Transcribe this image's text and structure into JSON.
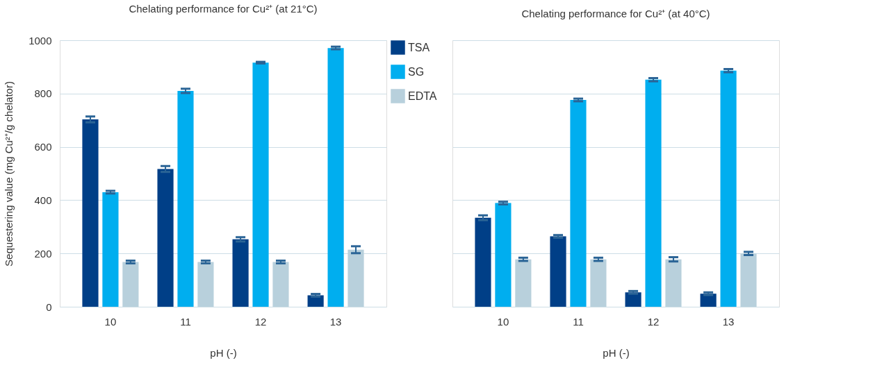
{
  "chart_data": [
    {
      "type": "bar",
      "title": "Chelating performance for Cu²⁺ (at 21°C)",
      "xlabel": "pH (-)",
      "ylabel": "Sequestering value (mg Cu²⁺/g chelator)",
      "categories": [
        "10",
        "11",
        "12",
        "13"
      ],
      "ylim": [
        0,
        1000
      ],
      "yticks": [
        0,
        200,
        400,
        600,
        800,
        {
          "value": 1000,
          "label": "1000"
        }
      ],
      "grid": "y",
      "legend": "right",
      "series": [
        {
          "name": "TSA",
          "color": "#003f87",
          "values": [
            703,
            517,
            253,
            43
          ],
          "errors": [
            11,
            11,
            8,
            5
          ]
        },
        {
          "name": "SG",
          "color": "#00aeef",
          "values": [
            430,
            810,
            916,
            971
          ],
          "errors": [
            5,
            8,
            3,
            5
          ]
        },
        {
          "name": "EDTA",
          "color": "#b8d0dc",
          "values": [
            168,
            168,
            168,
            214
          ],
          "errors": [
            5,
            5,
            5,
            13
          ]
        }
      ]
    },
    {
      "type": "bar",
      "title": "Chelating performance for Cu²⁺ (at 40°C)",
      "xlabel": "pH (-)",
      "categories": [
        "10",
        "11",
        "12",
        "13"
      ],
      "ylim": [
        0,
        1000
      ],
      "yticks": [
        0,
        200,
        400,
        600,
        800,
        1000
      ],
      "grid": "y",
      "tick_labels": "x",
      "series": [
        {
          "name": "TSA",
          "color": "#003f87",
          "values": [
            334,
            264,
            54,
            49
          ],
          "errors": [
            9,
            5,
            5,
            5
          ]
        },
        {
          "name": "SG",
          "color": "#00aeef",
          "values": [
            389,
            776,
            852,
            886
          ],
          "errors": [
            5,
            5,
            6,
            6
          ]
        },
        {
          "name": "EDTA",
          "color": "#b8d0dc",
          "values": [
            178,
            178,
            178,
            200
          ],
          "errors": [
            6,
            6,
            8,
            6
          ]
        }
      ]
    }
  ]
}
